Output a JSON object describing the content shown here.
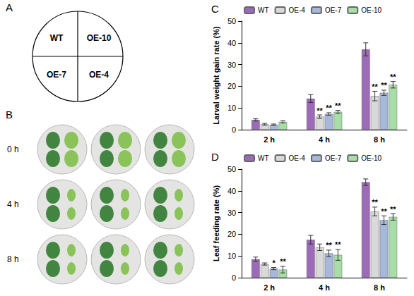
{
  "diagram": {
    "panel": "A",
    "quadrants": [
      "WT",
      "OE-10",
      "OE-7",
      "OE-4"
    ]
  },
  "photos": {
    "panel": "B",
    "rows": [
      "0 h",
      "4 h",
      "8 h"
    ]
  },
  "chart_data": [
    {
      "type": "bar",
      "panel": "C",
      "y_label": "Larval weight gain rate (%)",
      "categories": [
        "2 h",
        "4 h",
        "8 h"
      ],
      "ylim": [
        0,
        50
      ],
      "yticks": [
        0,
        10,
        20,
        30,
        40,
        50
      ],
      "grid": false,
      "legend": "top",
      "series": [
        {
          "name": "WT",
          "color": "#9b6bb8",
          "values": [
            4.5,
            14.3,
            37.0
          ],
          "errors": [
            0.5,
            1.8,
            3.0
          ],
          "significance": [
            null,
            null,
            null
          ]
        },
        {
          "name": "OE-4",
          "color": "#d9d9d9",
          "values": [
            2.5,
            6.0,
            15.5
          ],
          "errors": [
            0.4,
            0.8,
            2.2
          ],
          "significance": [
            null,
            "**",
            "**"
          ]
        },
        {
          "name": "OE-7",
          "color": "#a7b8da",
          "values": [
            2.3,
            7.2,
            17.0
          ],
          "errors": [
            0.3,
            0.6,
            1.2
          ],
          "significance": [
            null,
            "**",
            "**"
          ]
        },
        {
          "name": "OE-10",
          "color": "#a6dea6",
          "values": [
            3.6,
            8.2,
            20.7
          ],
          "errors": [
            0.5,
            0.7,
            1.5
          ],
          "significance": [
            null,
            "**",
            "**"
          ]
        }
      ]
    },
    {
      "type": "bar",
      "panel": "D",
      "y_label": "Leaf feeding rate (%)",
      "categories": [
        "2 h",
        "4 h",
        "8 h"
      ],
      "ylim": [
        0,
        50
      ],
      "yticks": [
        0,
        10,
        20,
        30,
        40,
        50
      ],
      "grid": false,
      "legend": "top",
      "series": [
        {
          "name": "WT",
          "color": "#9b6bb8",
          "values": [
            8.5,
            17.5,
            44.0
          ],
          "errors": [
            1.0,
            2.0,
            1.5
          ],
          "significance": [
            null,
            null,
            null
          ]
        },
        {
          "name": "OE-4",
          "color": "#d9d9d9",
          "values": [
            6.3,
            14.0,
            30.5
          ],
          "errors": [
            0.5,
            1.5,
            2.0
          ],
          "significance": [
            null,
            null,
            "**"
          ]
        },
        {
          "name": "OE-7",
          "color": "#a7b8da",
          "values": [
            4.2,
            11.2,
            26.5
          ],
          "errors": [
            0.5,
            1.5,
            2.0
          ],
          "significance": [
            "*",
            "**",
            "**"
          ]
        },
        {
          "name": "OE-10",
          "color": "#a6dea6",
          "values": [
            3.7,
            10.5,
            28.0
          ],
          "errors": [
            1.5,
            2.5,
            1.5
          ],
          "significance": [
            "**",
            "**",
            "**"
          ]
        }
      ]
    }
  ]
}
